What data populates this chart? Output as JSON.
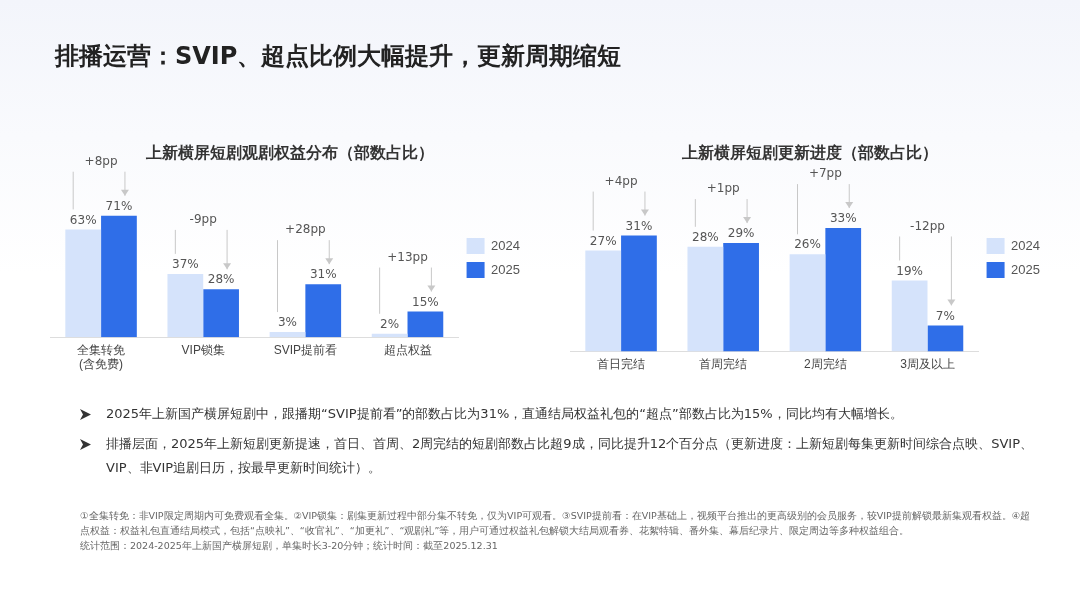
{
  "chart_data": [
    {
      "type": "other",
      "title": "排播运营：SVIP、超点比例大幅提升，更新周期缩短"
    },
    {
      "type": "bar",
      "title": "上新横屏短剧观剧权益分布（部数占比）",
      "categories": [
        "全集转免\n(含免费)",
        "VIP锁集",
        "SVIP提前看",
        "超点权益"
      ],
      "series": [
        {
          "name": "2024",
          "color": "#d5e3fb",
          "values": [
            63,
            37,
            3,
            2
          ],
          "value_labels": [
            "63%",
            "37%",
            "3%",
            "2%"
          ]
        },
        {
          "name": "2025",
          "color": "#2f6ee8",
          "values": [
            71,
            28,
            31,
            15
          ],
          "value_labels": [
            "71%",
            "28%",
            "31%",
            "15%"
          ]
        }
      ],
      "legend": "right",
      "tick_labels": "x",
      "grid": false,
      "annotations": [
        "+8pp",
        "-9pp",
        "+28pp",
        "+13pp"
      ]
    },
    {
      "type": "bar",
      "title": "上新横屏短剧更新进度（部数占比）",
      "categories": [
        "首日完结",
        "首周完结",
        "2周完结",
        "3周及以上"
      ],
      "series": [
        {
          "name": "2024",
          "color": "#d5e3fb",
          "values": [
            27,
            28,
            26,
            19
          ],
          "value_labels": [
            "27%",
            "28%",
            "26%",
            "19%"
          ]
        },
        {
          "name": "2025",
          "color": "#2f6ee8",
          "values": [
            31,
            29,
            33,
            7
          ],
          "value_labels": [
            "31%",
            "29%",
            "33%",
            "7%"
          ]
        }
      ],
      "legend": "right",
      "tick_labels": "x",
      "grid": false,
      "annotations": [
        "+4pp",
        "+1pp",
        "+7pp",
        "-12pp"
      ]
    },
    {
      "type": "other",
      "annotations": [
        "2025年上新国产横屏短剧中，跟播期“SVIP提前看”的部数占比为31%，直通结局权益礼包的“超点”部数占比为15%，同比均有大幅增长。",
        "排播层面，2025年上新短剧更新提速，首日、首周、2周完结的短剧部数占比超9成，同比提升12个百分点（更新进度：上新短剧每集更新时间综合点映、SVIP、VIP、非VIP追剧日历，按最早更新时间统计）。",
        "①全集转免：非VIP限定周期内可免费观看全集。②VIP锁集：剧集更新过程中部分集不转免，仅为VIP可观看。③SVIP提前看：在VIP基础上，视频平台推出的更高级别的会员服务，较VIP提前解锁最新集观看权益。④超点权益：权益礼包直通结局模式，包括“点映礼”、“收官礼”、“加更礼”、“观剧礼”等，用户可通过权益礼包解锁大结局观看券、花絮特辑、番外集、幕后纪录片、限定周边等多种权益组合。",
        "统计范围：2024-2025年上新国产横屏短剧，单集时长3-20分钟；统计时间：截至2025.12.31"
      ]
    }
  ]
}
